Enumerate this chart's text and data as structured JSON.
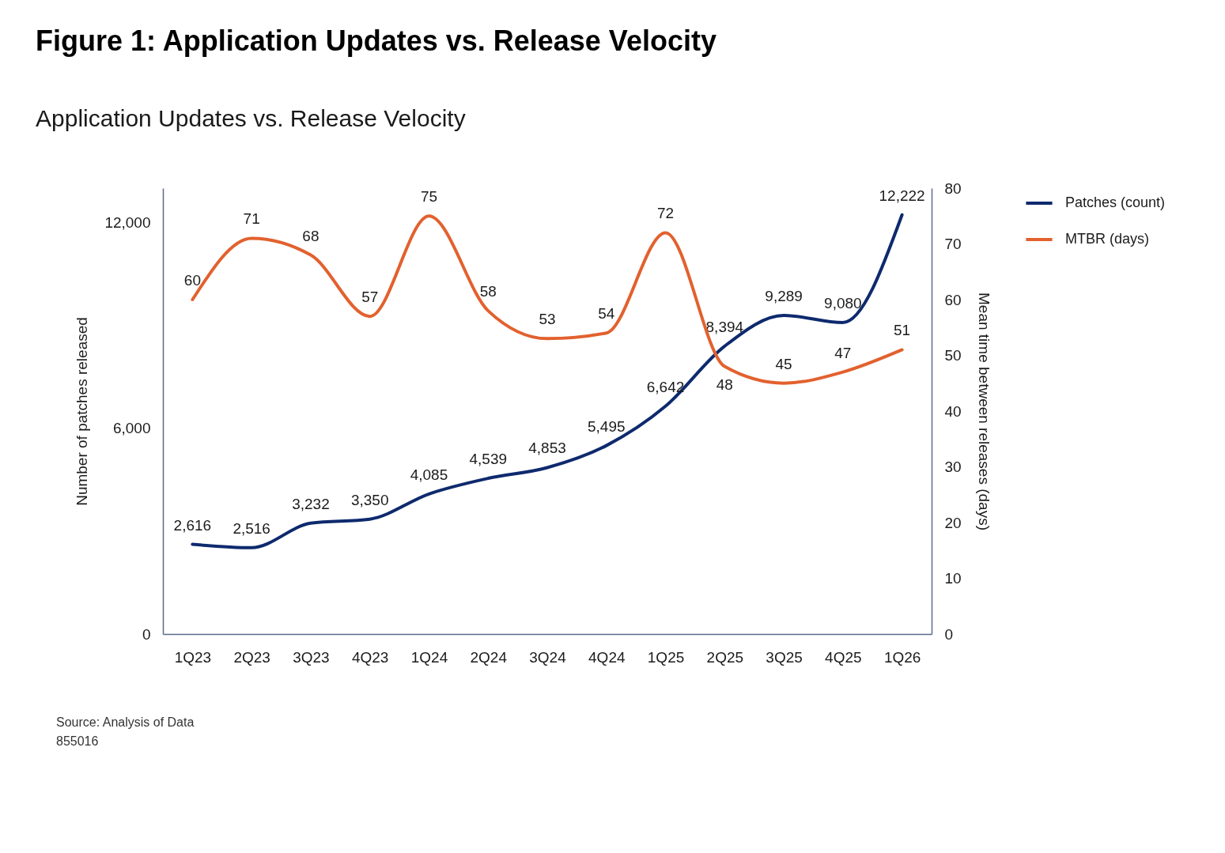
{
  "chart_data": {
    "type": "line",
    "title": "Figure 1: Application Updates vs. Release Velocity",
    "subtitle": "Application Updates vs. Release Velocity",
    "ylabel": "Number of patches released",
    "y2label": "Mean time between releases (days)",
    "categories": [
      "1Q23",
      "2Q23",
      "3Q23",
      "4Q23",
      "1Q24",
      "2Q24",
      "3Q24",
      "4Q24",
      "1Q25",
      "2Q25",
      "3Q25",
      "4Q25",
      "1Q26"
    ],
    "series": [
      {
        "name": "Patches (count)",
        "color": "#0e2a6e",
        "values": [
          2616,
          2516,
          3232,
          3350,
          4085,
          4539,
          4853,
          5495,
          6642,
          8394,
          9289,
          9080,
          12222
        ],
        "value_labels": [
          "2,616",
          "2,516",
          "3,232",
          "3,350",
          "4,085",
          "4,539",
          "4,853",
          "5,495",
          "6,642",
          "8,394",
          "9,289",
          "9,080",
          "12,222"
        ]
      },
      {
        "name": "MTBR (days)",
        "color": "#e2612e",
        "axis": "y2",
        "values": [
          60,
          71,
          68,
          57,
          75,
          58,
          53,
          54,
          72,
          48,
          45,
          47,
          51
        ],
        "value_labels": [
          "60",
          "71",
          "68",
          "57",
          "75",
          "58",
          "53",
          "54",
          "72",
          "48",
          "45",
          "47",
          "51"
        ]
      }
    ],
    "ylim": [
      0,
      13000
    ],
    "yticks": [
      0,
      {
        "value": 6000,
        "label": "6,000"
      },
      {
        "value": 12000,
        "label": "12,000"
      }
    ],
    "y2lim": [
      0,
      80
    ],
    "y2ticks": [
      0,
      10,
      20,
      30,
      40,
      50,
      60,
      70,
      80
    ],
    "grid": false,
    "legend": "top right",
    "marker": "none",
    "line_style": "solid",
    "annotations": [
      "Source: Analysis of Data",
      "855016"
    ]
  }
}
